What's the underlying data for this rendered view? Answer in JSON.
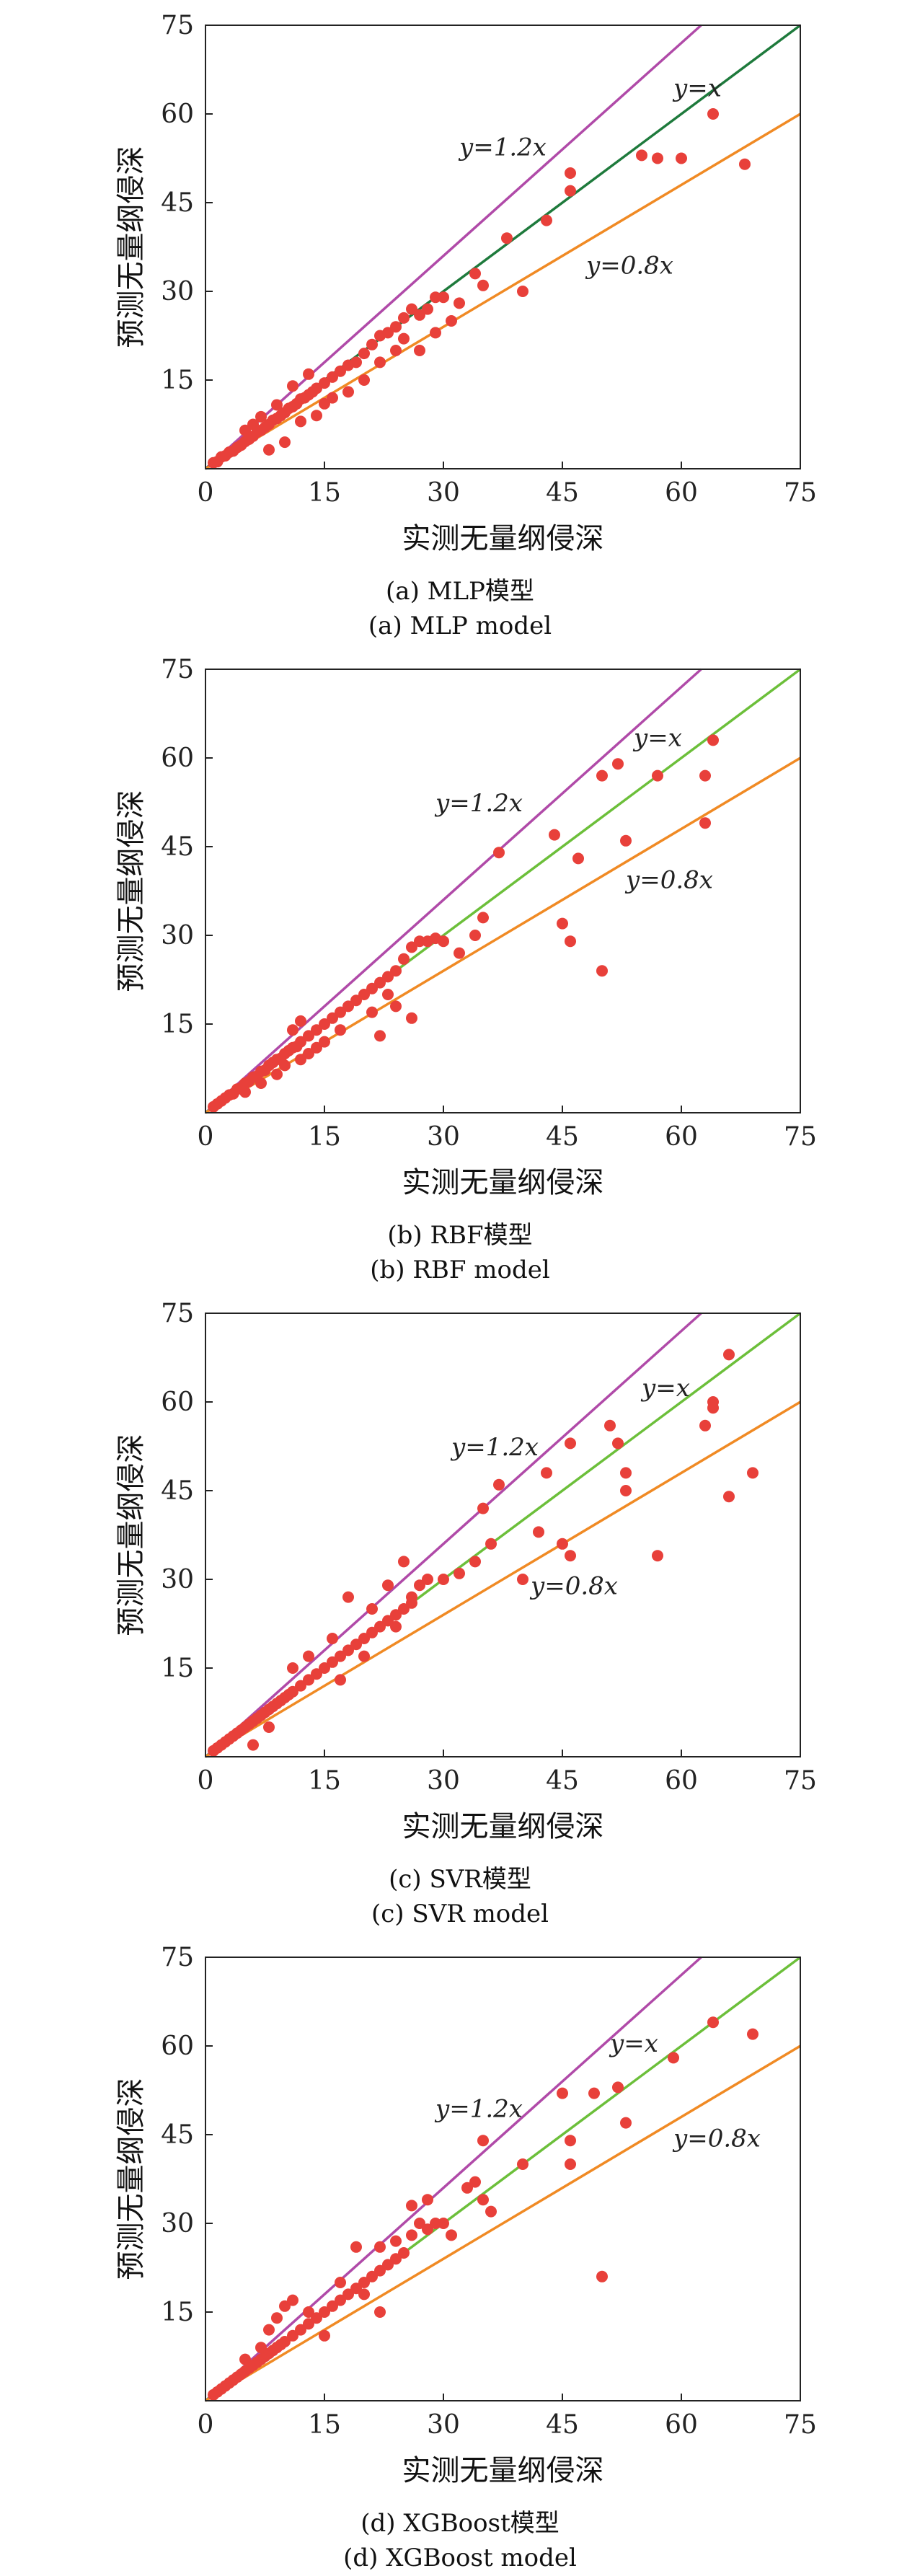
{
  "chart_data": [
    {
      "type": "scatter",
      "xlabel": "实测无量纲侵深",
      "ylabel": "预测无量纲侵深",
      "xlim": [
        0,
        75
      ],
      "ylim": [
        0,
        75
      ],
      "xticks": [
        0,
        15,
        30,
        45,
        60,
        75
      ],
      "yticks": [
        15,
        30,
        45,
        60,
        75
      ],
      "grid": false,
      "caption_cn": "(a) MLP模型",
      "caption_en": "(a) MLP model",
      "reference_lines": [
        {
          "label": "y=1.2x",
          "slope": 1.2,
          "color": "#b04aa8",
          "label_at": [
            32,
            53
          ]
        },
        {
          "label": "y=x",
          "slope": 1.0,
          "color": "#1e7a3c",
          "label_at": [
            59,
            63
          ]
        },
        {
          "label": "y=0.8x",
          "slope": 0.8,
          "color": "#f08a24",
          "label_at": [
            48,
            33
          ]
        }
      ],
      "point_color": "#e8403a",
      "points": [
        [
          1,
          1
        ],
        [
          1.5,
          1.2
        ],
        [
          2,
          2
        ],
        [
          2.5,
          2.2
        ],
        [
          3,
          2.8
        ],
        [
          3.5,
          3
        ],
        [
          4,
          3.6
        ],
        [
          4.5,
          4
        ],
        [
          5,
          4.6
        ],
        [
          5.5,
          5
        ],
        [
          6,
          5.5
        ],
        [
          6.5,
          6.2
        ],
        [
          7,
          6.5
        ],
        [
          7.5,
          7
        ],
        [
          8,
          7.5
        ],
        [
          8.5,
          8.2
        ],
        [
          9,
          8.5
        ],
        [
          9.5,
          9
        ],
        [
          10,
          9.5
        ],
        [
          10.5,
          10.2
        ],
        [
          11,
          10.5
        ],
        [
          11.5,
          11
        ],
        [
          12,
          11.8
        ],
        [
          12.5,
          12
        ],
        [
          13,
          12.5
        ],
        [
          13.5,
          13
        ],
        [
          14,
          13.6
        ],
        [
          15,
          14.5
        ],
        [
          16,
          15.5
        ],
        [
          17,
          16.5
        ],
        [
          18,
          17.5
        ],
        [
          19,
          18
        ],
        [
          20,
          19.5
        ],
        [
          21,
          21
        ],
        [
          22,
          22.5
        ],
        [
          23,
          23
        ],
        [
          24,
          24
        ],
        [
          25,
          25.5
        ],
        [
          26,
          27
        ],
        [
          27,
          26
        ],
        [
          28,
          27
        ],
        [
          29,
          29
        ],
        [
          30,
          29
        ],
        [
          31,
          25
        ],
        [
          32,
          28
        ],
        [
          34,
          33
        ],
        [
          35,
          31
        ],
        [
          38,
          39
        ],
        [
          40,
          30
        ],
        [
          43,
          42
        ],
        [
          46,
          47
        ],
        [
          46,
          50
        ],
        [
          55,
          53
        ],
        [
          57,
          52.5
        ],
        [
          60,
          52.5
        ],
        [
          64,
          60
        ],
        [
          68,
          51.5
        ],
        [
          8,
          3.2
        ],
        [
          10,
          4.5
        ],
        [
          12,
          8
        ],
        [
          14,
          9
        ],
        [
          11,
          14
        ],
        [
          13,
          16
        ],
        [
          15,
          11
        ],
        [
          16,
          12
        ],
        [
          18,
          13
        ],
        [
          20,
          15
        ],
        [
          22,
          18
        ],
        [
          24,
          20
        ],
        [
          25,
          22
        ],
        [
          27,
          20
        ],
        [
          29,
          23
        ],
        [
          6,
          7.5
        ],
        [
          7,
          8.8
        ],
        [
          9,
          10.8
        ],
        [
          5,
          6.5
        ]
      ]
    },
    {
      "type": "scatter",
      "xlabel": "实测无量纲侵深",
      "ylabel": "预测无量纲侵深",
      "xlim": [
        0,
        75
      ],
      "ylim": [
        0,
        75
      ],
      "xticks": [
        0,
        15,
        30,
        45,
        60,
        75
      ],
      "yticks": [
        15,
        30,
        45,
        60,
        75
      ],
      "grid": false,
      "caption_cn": "(b) RBF模型",
      "caption_en": "(b) RBF model",
      "reference_lines": [
        {
          "label": "y=1.2x",
          "slope": 1.2,
          "color": "#b04aa8",
          "label_at": [
            29,
            51
          ]
        },
        {
          "label": "y=x",
          "slope": 1.0,
          "color": "#6cbf3a",
          "label_at": [
            54,
            62
          ]
        },
        {
          "label": "y=0.8x",
          "slope": 0.8,
          "color": "#f08a24",
          "label_at": [
            53,
            38
          ]
        }
      ],
      "point_color": "#e8403a",
      "points": [
        [
          1,
          1
        ],
        [
          1.5,
          1.5
        ],
        [
          2,
          2
        ],
        [
          2.5,
          2.5
        ],
        [
          3,
          3
        ],
        [
          3.5,
          3.2
        ],
        [
          4,
          4
        ],
        [
          4.5,
          4.2
        ],
        [
          5,
          5
        ],
        [
          5.5,
          5.3
        ],
        [
          6,
          6
        ],
        [
          6.5,
          6.2
        ],
        [
          7,
          7
        ],
        [
          7.5,
          7.2
        ],
        [
          8,
          8
        ],
        [
          8.5,
          8.5
        ],
        [
          9,
          9
        ],
        [
          9.5,
          9.2
        ],
        [
          10,
          10
        ],
        [
          10.5,
          10.5
        ],
        [
          11,
          11
        ],
        [
          11.5,
          11.2
        ],
        [
          12,
          12
        ],
        [
          13,
          13
        ],
        [
          14,
          14
        ],
        [
          15,
          15
        ],
        [
          16,
          16
        ],
        [
          17,
          17
        ],
        [
          18,
          18
        ],
        [
          19,
          19
        ],
        [
          20,
          20
        ],
        [
          21,
          21
        ],
        [
          22,
          22
        ],
        [
          23,
          23
        ],
        [
          24,
          24
        ],
        [
          25,
          26
        ],
        [
          26,
          28
        ],
        [
          27,
          29
        ],
        [
          28,
          29
        ],
        [
          29,
          29.5
        ],
        [
          30,
          29
        ],
        [
          32,
          27
        ],
        [
          35,
          33
        ],
        [
          34,
          30
        ],
        [
          37,
          44
        ],
        [
          44,
          47
        ],
        [
          45,
          32
        ],
        [
          46,
          29
        ],
        [
          47,
          43
        ],
        [
          50,
          24
        ],
        [
          50,
          57
        ],
        [
          52,
          59
        ],
        [
          53,
          46
        ],
        [
          57,
          57
        ],
        [
          63,
          57
        ],
        [
          63,
          49
        ],
        [
          64,
          63
        ],
        [
          5,
          3.5
        ],
        [
          7,
          5
        ],
        [
          9,
          6.5
        ],
        [
          10,
          8
        ],
        [
          12,
          9
        ],
        [
          13,
          10
        ],
        [
          14,
          11
        ],
        [
          11,
          14
        ],
        [
          12,
          15.5
        ],
        [
          15,
          12
        ],
        [
          17,
          14
        ],
        [
          22,
          13
        ],
        [
          24,
          18
        ],
        [
          26,
          16
        ],
        [
          23,
          20
        ],
        [
          21,
          17
        ]
      ]
    },
    {
      "type": "scatter",
      "xlabel": "实测无量纲侵深",
      "ylabel": "预测无量纲侵深",
      "xlim": [
        0,
        75
      ],
      "ylim": [
        0,
        75
      ],
      "xticks": [
        0,
        15,
        30,
        45,
        60,
        75
      ],
      "yticks": [
        15,
        30,
        45,
        60,
        75
      ],
      "grid": false,
      "caption_cn": "(c) SVR模型",
      "caption_en": "(c) SVR model",
      "reference_lines": [
        {
          "label": "y=1.2x",
          "slope": 1.2,
          "color": "#b04aa8",
          "label_at": [
            31,
            51
          ]
        },
        {
          "label": "y=x",
          "slope": 1.0,
          "color": "#6cbf3a",
          "label_at": [
            55,
            61
          ]
        },
        {
          "label": "y=0.8x",
          "slope": 0.8,
          "color": "#f08a24",
          "label_at": [
            41,
            27.5
          ]
        }
      ],
      "point_color": "#e8403a",
      "points": [
        [
          1,
          1
        ],
        [
          1.5,
          1.5
        ],
        [
          2,
          2
        ],
        [
          2.5,
          2.5
        ],
        [
          3,
          3
        ],
        [
          3.5,
          3.5
        ],
        [
          4,
          4
        ],
        [
          4.5,
          4.5
        ],
        [
          5,
          5
        ],
        [
          5.5,
          5.5
        ],
        [
          6,
          6
        ],
        [
          6.5,
          6.5
        ],
        [
          7,
          7
        ],
        [
          7.5,
          7.5
        ],
        [
          8,
          8
        ],
        [
          8.5,
          8.5
        ],
        [
          9,
          9
        ],
        [
          9.5,
          9.5
        ],
        [
          10,
          10
        ],
        [
          10.5,
          10.5
        ],
        [
          11,
          11
        ],
        [
          12,
          12
        ],
        [
          13,
          13
        ],
        [
          14,
          14
        ],
        [
          15,
          15
        ],
        [
          16,
          16
        ],
        [
          17,
          17
        ],
        [
          18,
          18
        ],
        [
          19,
          19
        ],
        [
          20,
          20
        ],
        [
          21,
          21
        ],
        [
          22,
          22
        ],
        [
          23,
          23
        ],
        [
          24,
          24
        ],
        [
          25,
          25
        ],
        [
          26,
          27
        ],
        [
          27,
          29
        ],
        [
          28,
          30
        ],
        [
          30,
          30
        ],
        [
          32,
          31
        ],
        [
          34,
          33
        ],
        [
          35,
          42
        ],
        [
          36,
          36
        ],
        [
          37,
          46
        ],
        [
          40,
          30
        ],
        [
          42,
          38
        ],
        [
          43,
          48
        ],
        [
          45,
          36
        ],
        [
          46,
          53
        ],
        [
          46,
          34
        ],
        [
          51,
          56
        ],
        [
          52,
          53
        ],
        [
          53,
          45
        ],
        [
          53,
          48
        ],
        [
          57,
          34
        ],
        [
          63,
          56
        ],
        [
          64,
          60
        ],
        [
          64,
          59
        ],
        [
          66,
          44
        ],
        [
          66,
          68
        ],
        [
          69,
          48
        ],
        [
          6,
          2
        ],
        [
          8,
          5
        ],
        [
          11,
          15
        ],
        [
          13,
          17
        ],
        [
          16,
          20
        ],
        [
          18,
          27
        ],
        [
          21,
          25
        ],
        [
          23,
          29
        ],
        [
          25,
          33
        ],
        [
          26,
          26
        ],
        [
          24,
          22
        ],
        [
          20,
          17
        ],
        [
          17,
          13
        ]
      ]
    },
    {
      "type": "scatter",
      "xlabel": "实测无量纲侵深",
      "ylabel": "预测无量纲侵深",
      "xlim": [
        0,
        75
      ],
      "ylim": [
        0,
        75
      ],
      "xticks": [
        0,
        15,
        30,
        45,
        60,
        75
      ],
      "yticks": [
        15,
        30,
        45,
        60,
        75
      ],
      "grid": false,
      "caption_cn": "(d) XGBoost模型",
      "caption_en": "(d) XGBoost model",
      "reference_lines": [
        {
          "label": "y=1.2x",
          "slope": 1.2,
          "color": "#b04aa8",
          "label_at": [
            29,
            48
          ]
        },
        {
          "label": "y=x",
          "slope": 1.0,
          "color": "#6cbf3a",
          "label_at": [
            51,
            59
          ]
        },
        {
          "label": "y=0.8x",
          "slope": 0.8,
          "color": "#f08a24",
          "label_at": [
            59,
            43
          ]
        }
      ],
      "point_color": "#e8403a",
      "points": [
        [
          1,
          1
        ],
        [
          1.5,
          1.5
        ],
        [
          2,
          2
        ],
        [
          2.5,
          2.5
        ],
        [
          3,
          3
        ],
        [
          3.5,
          3.5
        ],
        [
          4,
          4
        ],
        [
          4.5,
          4.5
        ],
        [
          5,
          5
        ],
        [
          5.5,
          5.5
        ],
        [
          6,
          6
        ],
        [
          6.5,
          6.5
        ],
        [
          7,
          7
        ],
        [
          7.5,
          7.5
        ],
        [
          8,
          8
        ],
        [
          8.5,
          8.5
        ],
        [
          9,
          9
        ],
        [
          9.5,
          9.5
        ],
        [
          10,
          10
        ],
        [
          11,
          11
        ],
        [
          12,
          12
        ],
        [
          13,
          13
        ],
        [
          14,
          14
        ],
        [
          15,
          15
        ],
        [
          16,
          16
        ],
        [
          17,
          17
        ],
        [
          18,
          18
        ],
        [
          19,
          19
        ],
        [
          20,
          20
        ],
        [
          21,
          21
        ],
        [
          22,
          22
        ],
        [
          23,
          23
        ],
        [
          24,
          24
        ],
        [
          25,
          25
        ],
        [
          26,
          28
        ],
        [
          27,
          30
        ],
        [
          28,
          29
        ],
        [
          29,
          30
        ],
        [
          30,
          30
        ],
        [
          31,
          28
        ],
        [
          33,
          36
        ],
        [
          34,
          37
        ],
        [
          35,
          44
        ],
        [
          35,
          34
        ],
        [
          36,
          32
        ],
        [
          40,
          40
        ],
        [
          45,
          52
        ],
        [
          46,
          44
        ],
        [
          46,
          40
        ],
        [
          49,
          52
        ],
        [
          50,
          21
        ],
        [
          52,
          53
        ],
        [
          53,
          47
        ],
        [
          59,
          58
        ],
        [
          64,
          64
        ],
        [
          69,
          62
        ],
        [
          5,
          7
        ],
        [
          7,
          9
        ],
        [
          8,
          12
        ],
        [
          9,
          14
        ],
        [
          10,
          16
        ],
        [
          11,
          17
        ],
        [
          13,
          15
        ],
        [
          17,
          20
        ],
        [
          19,
          26
        ],
        [
          22,
          26
        ],
        [
          24,
          27
        ],
        [
          26,
          33
        ],
        [
          28,
          34
        ],
        [
          22,
          15
        ],
        [
          20,
          18
        ],
        [
          15,
          11
        ]
      ]
    }
  ]
}
